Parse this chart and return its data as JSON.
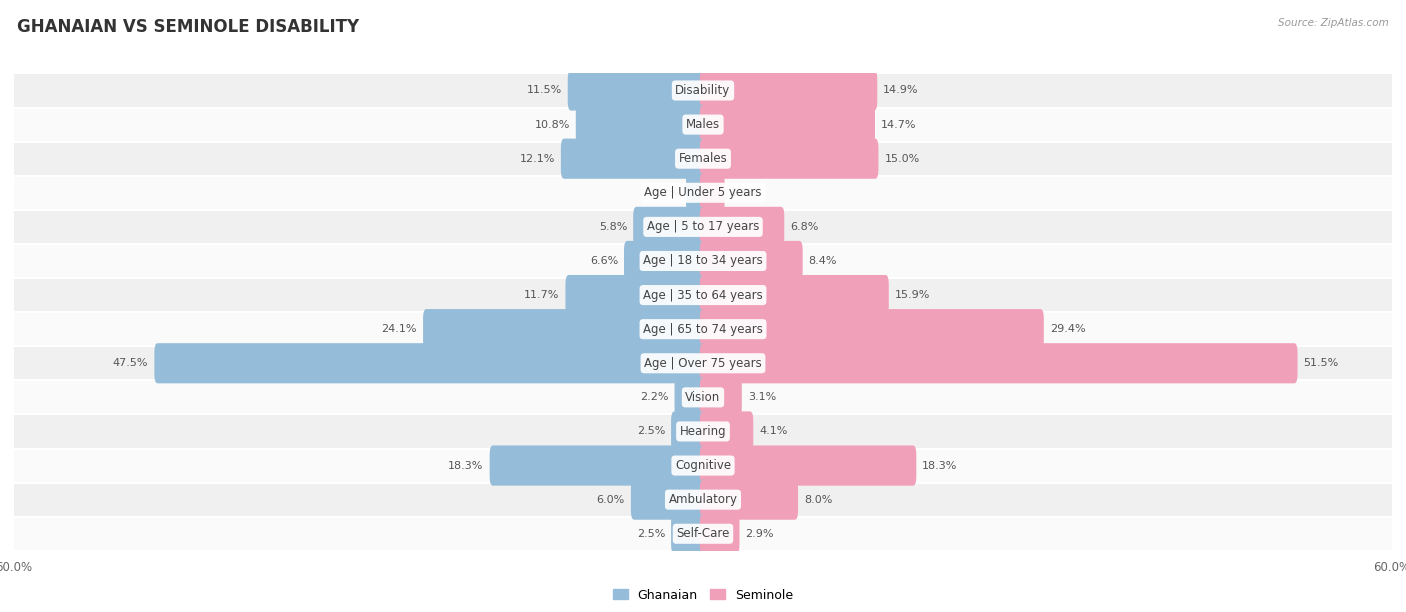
{
  "title": "GHANAIAN VS SEMINOLE DISABILITY",
  "source": "Source: ZipAtlas.com",
  "categories": [
    "Disability",
    "Males",
    "Females",
    "Age | Under 5 years",
    "Age | 5 to 17 years",
    "Age | 18 to 34 years",
    "Age | 35 to 64 years",
    "Age | 65 to 74 years",
    "Age | Over 75 years",
    "Vision",
    "Hearing",
    "Cognitive",
    "Ambulatory",
    "Self-Care"
  ],
  "ghanaian": [
    11.5,
    10.8,
    12.1,
    1.2,
    5.8,
    6.6,
    11.7,
    24.1,
    47.5,
    2.2,
    2.5,
    18.3,
    6.0,
    2.5
  ],
  "seminole": [
    14.9,
    14.7,
    15.0,
    1.6,
    6.8,
    8.4,
    15.9,
    29.4,
    51.5,
    3.1,
    4.1,
    18.3,
    8.0,
    2.9
  ],
  "ghanaian_color": "#95bcd8",
  "seminole_color": "#f0a0b8",
  "axis_limit": 60.0,
  "row_bg_light": "#f0f0f0",
  "row_bg_white": "#fafafa",
  "title_fontsize": 12,
  "label_fontsize": 8.5,
  "value_fontsize": 8,
  "legend_label_ghanaian": "Ghanaian",
  "legend_label_seminole": "Seminole"
}
